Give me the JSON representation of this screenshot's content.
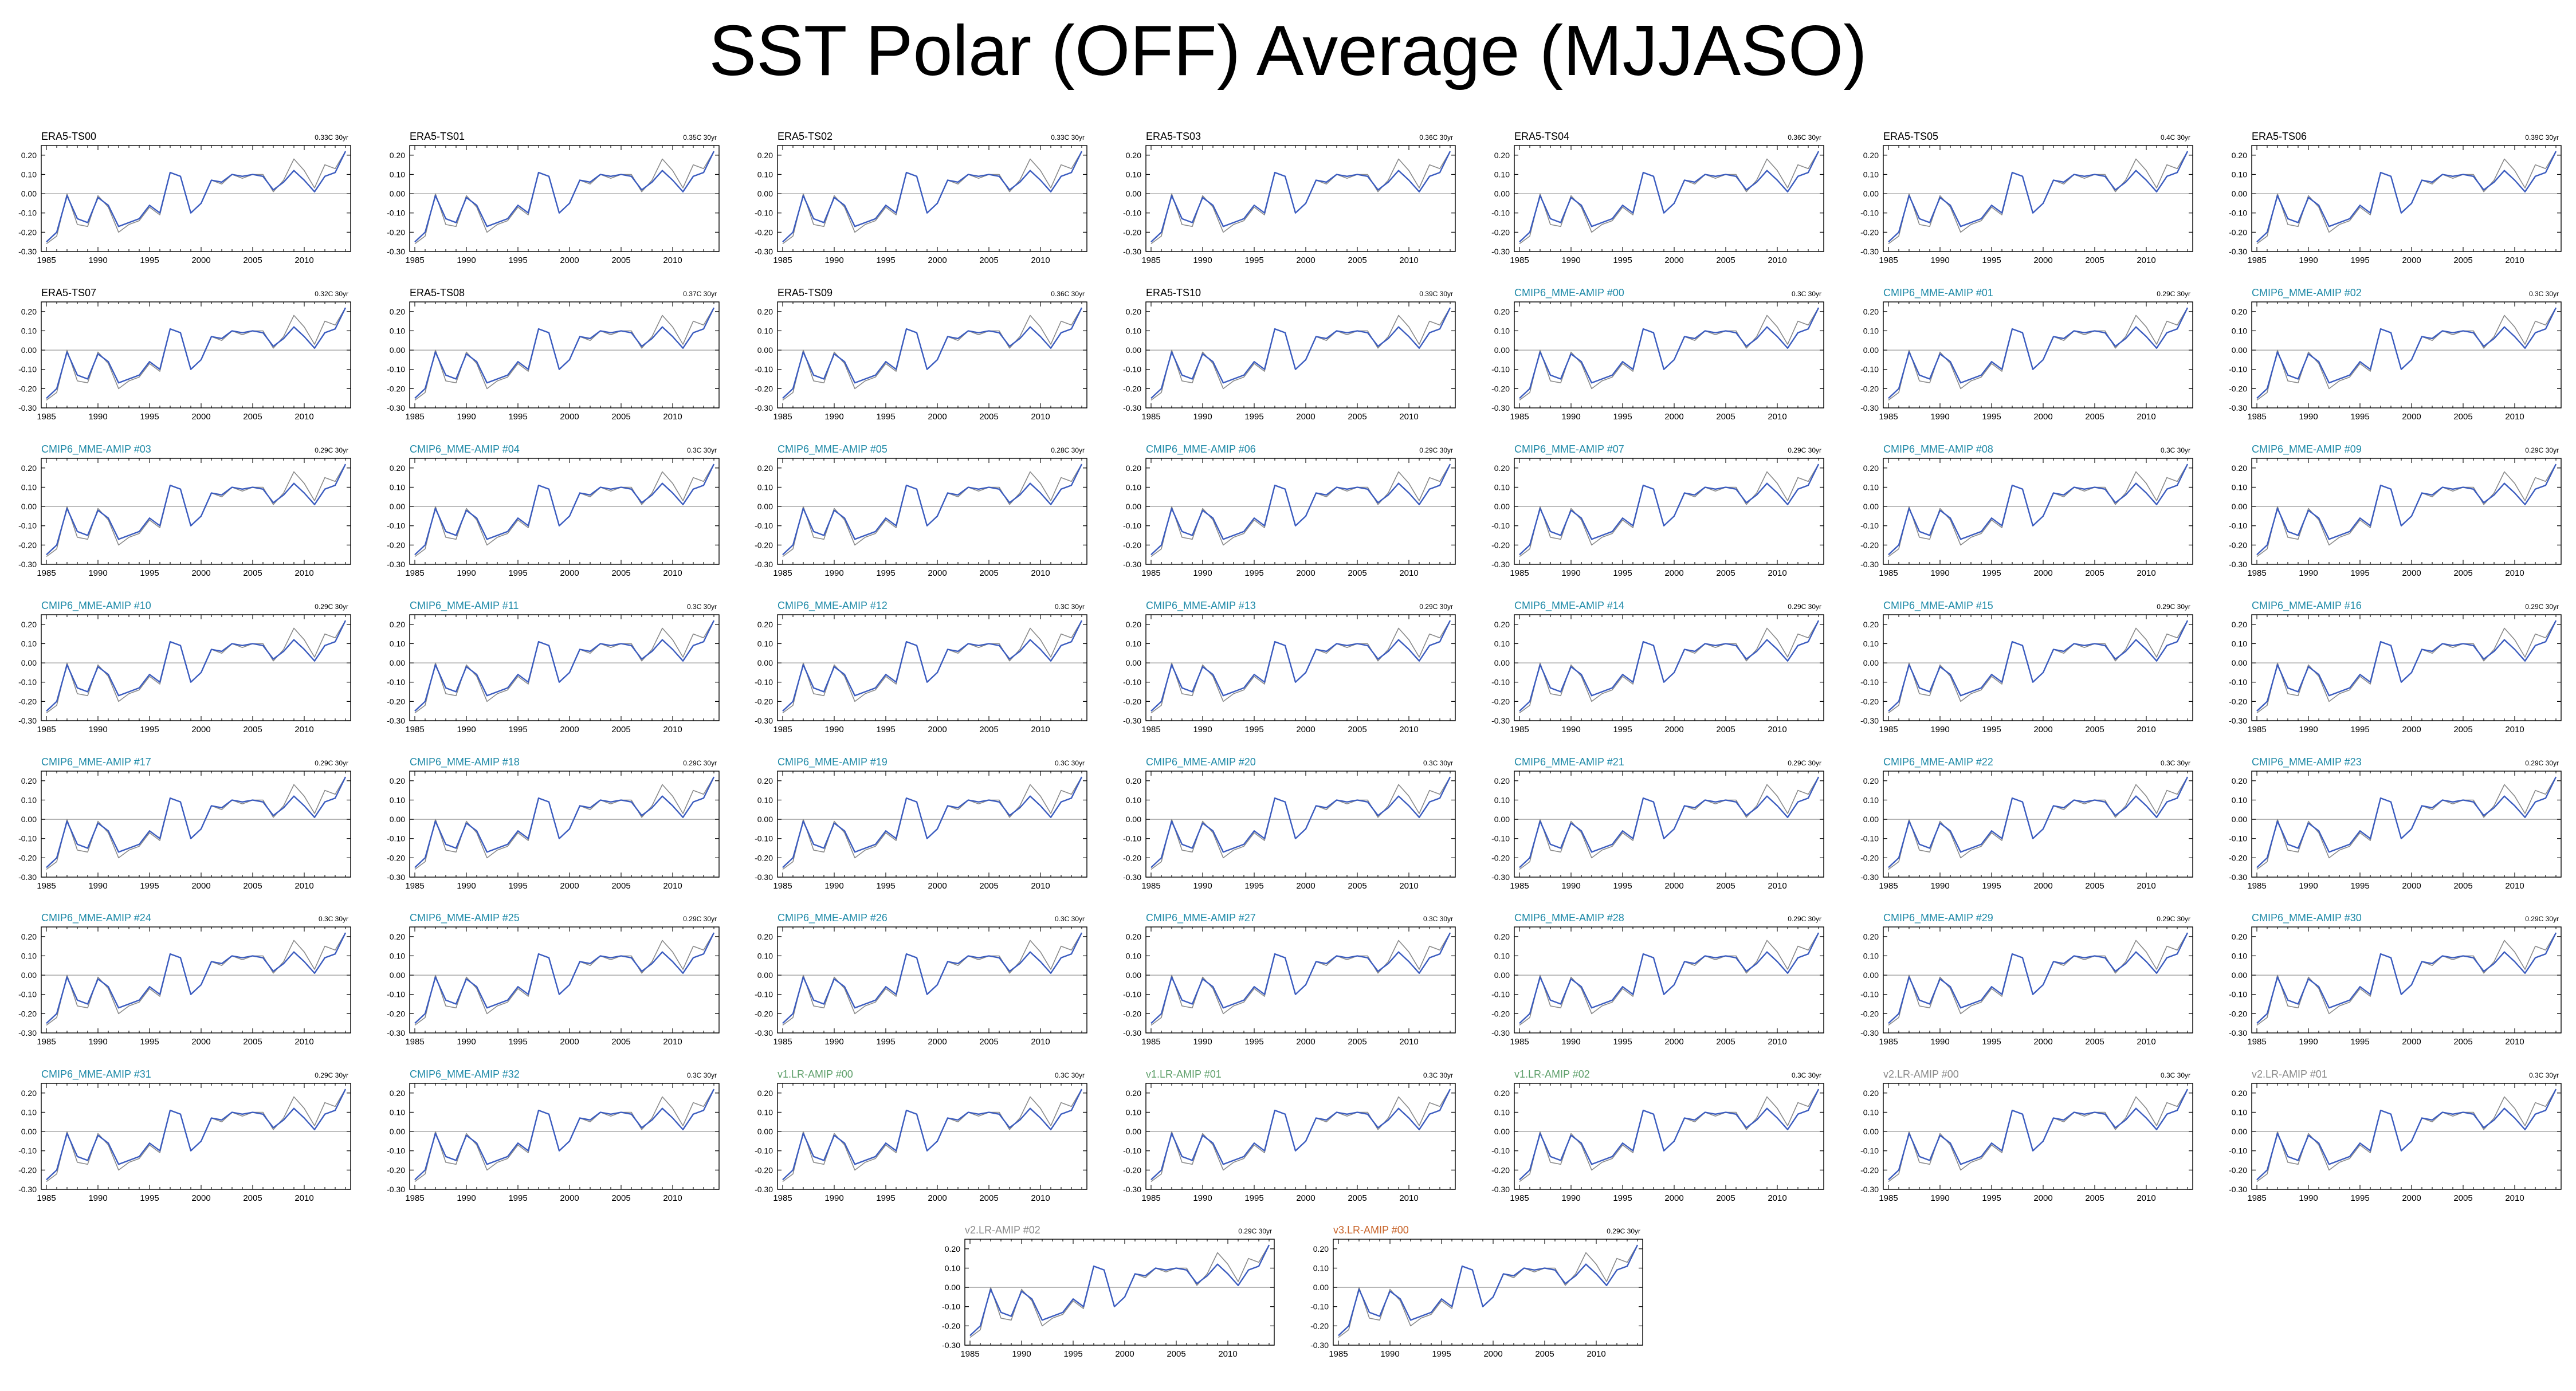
{
  "title": "SST Polar (OFF) Average (MJJASO)",
  "colors": {
    "reference_line": "#8a8a8a",
    "model_line": "#3a5bbf",
    "zero_line": "#9a9a9a",
    "label_era5": "#000000",
    "label_cmip6": "#1f8aa8",
    "label_v1": "#5e9f6a",
    "label_v2": "#8a8a8a",
    "label_v3": "#c8642a"
  },
  "axes": {
    "xlim": [
      1984.5,
      2014.5
    ],
    "x_ticks": [
      1985,
      1990,
      1995,
      2000,
      2005,
      2010
    ],
    "x_tick_labels": [
      "1985",
      "1990",
      "1995",
      "2000",
      "2005",
      "2010"
    ],
    "ylim": [
      -0.3,
      0.25
    ],
    "y_ticks": [
      -0.3,
      -0.2,
      -0.1,
      0.0,
      0.1,
      0.2
    ],
    "y_tick_labels": [
      "-0.30",
      "-0.20",
      "-0.10",
      "0.00",
      "0.10",
      "0.20"
    ],
    "zero_line": true,
    "grid": false
  },
  "panels": [
    {
      "name": "ERA5-TS00",
      "trend": "0.33C 30yr",
      "group": "era5"
    },
    {
      "name": "ERA5-TS01",
      "trend": "0.35C 30yr",
      "group": "era5"
    },
    {
      "name": "ERA5-TS02",
      "trend": "0.33C 30yr",
      "group": "era5"
    },
    {
      "name": "ERA5-TS03",
      "trend": "0.36C 30yr",
      "group": "era5"
    },
    {
      "name": "ERA5-TS04",
      "trend": "0.36C 30yr",
      "group": "era5"
    },
    {
      "name": "ERA5-TS05",
      "trend": "0.4C 30yr",
      "group": "era5"
    },
    {
      "name": "ERA5-TS06",
      "trend": "0.39C 30yr",
      "group": "era5"
    },
    {
      "name": "ERA5-TS07",
      "trend": "0.32C 30yr",
      "group": "era5"
    },
    {
      "name": "ERA5-TS08",
      "trend": "0.37C 30yr",
      "group": "era5"
    },
    {
      "name": "ERA5-TS09",
      "trend": "0.36C 30yr",
      "group": "era5"
    },
    {
      "name": "ERA5-TS10",
      "trend": "0.39C 30yr",
      "group": "era5"
    },
    {
      "name": "CMIP6_MME-AMIP  #00",
      "trend": "0.3C 30yr",
      "group": "cmip6"
    },
    {
      "name": "CMIP6_MME-AMIP  #01",
      "trend": "0.29C 30yr",
      "group": "cmip6"
    },
    {
      "name": "CMIP6_MME-AMIP  #02",
      "trend": "0.3C 30yr",
      "group": "cmip6"
    },
    {
      "name": "CMIP6_MME-AMIP  #03",
      "trend": "0.29C 30yr",
      "group": "cmip6"
    },
    {
      "name": "CMIP6_MME-AMIP  #04",
      "trend": "0.3C 30yr",
      "group": "cmip6"
    },
    {
      "name": "CMIP6_MME-AMIP  #05",
      "trend": "0.28C 30yr",
      "group": "cmip6"
    },
    {
      "name": "CMIP6_MME-AMIP  #06",
      "trend": "0.29C 30yr",
      "group": "cmip6"
    },
    {
      "name": "CMIP6_MME-AMIP  #07",
      "trend": "0.29C 30yr",
      "group": "cmip6"
    },
    {
      "name": "CMIP6_MME-AMIP  #08",
      "trend": "0.3C 30yr",
      "group": "cmip6"
    },
    {
      "name": "CMIP6_MME-AMIP  #09",
      "trend": "0.29C 30yr",
      "group": "cmip6"
    },
    {
      "name": "CMIP6_MME-AMIP  #10",
      "trend": "0.29C 30yr",
      "group": "cmip6"
    },
    {
      "name": "CMIP6_MME-AMIP  #11",
      "trend": "0.3C 30yr",
      "group": "cmip6"
    },
    {
      "name": "CMIP6_MME-AMIP  #12",
      "trend": "0.3C 30yr",
      "group": "cmip6"
    },
    {
      "name": "CMIP6_MME-AMIP  #13",
      "trend": "0.29C 30yr",
      "group": "cmip6"
    },
    {
      "name": "CMIP6_MME-AMIP  #14",
      "trend": "0.29C 30yr",
      "group": "cmip6"
    },
    {
      "name": "CMIP6_MME-AMIP  #15",
      "trend": "0.29C 30yr",
      "group": "cmip6"
    },
    {
      "name": "CMIP6_MME-AMIP  #16",
      "trend": "0.29C 30yr",
      "group": "cmip6"
    },
    {
      "name": "CMIP6_MME-AMIP  #17",
      "trend": "0.29C 30yr",
      "group": "cmip6"
    },
    {
      "name": "CMIP6_MME-AMIP  #18",
      "trend": "0.29C 30yr",
      "group": "cmip6"
    },
    {
      "name": "CMIP6_MME-AMIP  #19",
      "trend": "0.3C 30yr",
      "group": "cmip6"
    },
    {
      "name": "CMIP6_MME-AMIP  #20",
      "trend": "0.3C 30yr",
      "group": "cmip6"
    },
    {
      "name": "CMIP6_MME-AMIP  #21",
      "trend": "0.29C 30yr",
      "group": "cmip6"
    },
    {
      "name": "CMIP6_MME-AMIP  #22",
      "trend": "0.3C 30yr",
      "group": "cmip6"
    },
    {
      "name": "CMIP6_MME-AMIP  #23",
      "trend": "0.29C 30yr",
      "group": "cmip6"
    },
    {
      "name": "CMIP6_MME-AMIP  #24",
      "trend": "0.3C 30yr",
      "group": "cmip6"
    },
    {
      "name": "CMIP6_MME-AMIP  #25",
      "trend": "0.29C 30yr",
      "group": "cmip6"
    },
    {
      "name": "CMIP6_MME-AMIP  #26",
      "trend": "0.3C 30yr",
      "group": "cmip6"
    },
    {
      "name": "CMIP6_MME-AMIP  #27",
      "trend": "0.3C 30yr",
      "group": "cmip6"
    },
    {
      "name": "CMIP6_MME-AMIP  #28",
      "trend": "0.29C 30yr",
      "group": "cmip6"
    },
    {
      "name": "CMIP6_MME-AMIP  #29",
      "trend": "0.29C 30yr",
      "group": "cmip6"
    },
    {
      "name": "CMIP6_MME-AMIP  #30",
      "trend": "0.29C 30yr",
      "group": "cmip6"
    },
    {
      "name": "CMIP6_MME-AMIP  #31",
      "trend": "0.29C 30yr",
      "group": "cmip6"
    },
    {
      "name": "CMIP6_MME-AMIP  #32",
      "trend": "0.3C 30yr",
      "group": "cmip6"
    },
    {
      "name": "v1.LR-AMIP  #00",
      "trend": "0.3C 30yr",
      "group": "v1"
    },
    {
      "name": "v1.LR-AMIP  #01",
      "trend": "0.3C 30yr",
      "group": "v1"
    },
    {
      "name": "v1.LR-AMIP  #02",
      "trend": "0.3C 30yr",
      "group": "v1"
    },
    {
      "name": "v2.LR-AMIP  #00",
      "trend": "0.3C 30yr",
      "group": "v2"
    },
    {
      "name": "v2.LR-AMIP  #01",
      "trend": "0.3C 30yr",
      "group": "v2"
    },
    {
      "name": "v2.LR-AMIP  #02",
      "trend": "0.29C 30yr",
      "group": "v2"
    },
    {
      "name": "v3.LR-AMIP  #00",
      "trend": "0.29C 30yr",
      "group": "v3"
    }
  ],
  "chart_data": {
    "type": "line",
    "x": [
      1985,
      1986,
      1987,
      1988,
      1989,
      1990,
      1991,
      1992,
      1993,
      1994,
      1995,
      1996,
      1997,
      1998,
      1999,
      2000,
      2001,
      2002,
      2003,
      2004,
      2005,
      2006,
      2007,
      2008,
      2009,
      2010,
      2011,
      2012,
      2013,
      2014
    ],
    "series": [
      {
        "values": [
          -0.26,
          -0.22,
          0.0,
          -0.16,
          -0.17,
          -0.01,
          -0.07,
          -0.2,
          -0.16,
          -0.14,
          -0.07,
          -0.11,
          0.11,
          0.09,
          -0.1,
          -0.05,
          0.07,
          0.05,
          0.1,
          0.08,
          0.1,
          0.1,
          0.01,
          0.07,
          0.18,
          0.12,
          0.03,
          0.15,
          0.13,
          0.22
        ]
      },
      {
        "values": [
          -0.25,
          -0.2,
          -0.01,
          -0.13,
          -0.15,
          -0.02,
          -0.06,
          -0.17,
          -0.15,
          -0.13,
          -0.06,
          -0.1,
          0.11,
          0.09,
          -0.1,
          -0.05,
          0.07,
          0.06,
          0.1,
          0.09,
          0.1,
          0.09,
          0.02,
          0.06,
          0.12,
          0.07,
          0.01,
          0.09,
          0.11,
          0.22
        ]
      }
    ],
    "ylim": [
      -0.3,
      0.25
    ],
    "xlim": [
      1984.5,
      2014.5
    ]
  }
}
